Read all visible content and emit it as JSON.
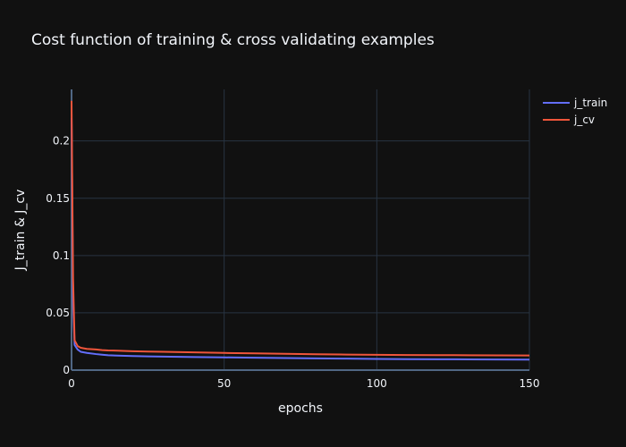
{
  "chart_data": {
    "type": "line",
    "title": "Cost function of training & cross validating examples",
    "xlabel": "epochs",
    "ylabel": "J_train & J_cv",
    "xlim": [
      0,
      150
    ],
    "ylim": [
      0,
      0.245
    ],
    "x_ticks": [
      0,
      50,
      100,
      150
    ],
    "y_ticks": [
      0,
      0.05,
      0.1,
      0.15,
      0.2
    ],
    "x_tick_labels": [
      "0",
      "50",
      "100",
      "150"
    ],
    "y_tick_labels": [
      "0",
      "0.05",
      "0.1",
      "0.15",
      "0.2"
    ],
    "grid": true,
    "legend_position": "top-right",
    "series": [
      {
        "name": "j_train",
        "color": "#636efa",
        "x": [
          0,
          0.5,
          1,
          2,
          3,
          5,
          8,
          10,
          12,
          15,
          20,
          25,
          30,
          40,
          50,
          60,
          70,
          80,
          90,
          100,
          110,
          120,
          130,
          140,
          150
        ],
        "y": [
          0.22,
          0.06,
          0.022,
          0.018,
          0.016,
          0.015,
          0.014,
          0.0135,
          0.013,
          0.0127,
          0.0123,
          0.012,
          0.0118,
          0.0114,
          0.0111,
          0.0108,
          0.0105,
          0.0102,
          0.01,
          0.0098,
          0.0096,
          0.0095,
          0.0094,
          0.0093,
          0.0092
        ]
      },
      {
        "name": "j_cv",
        "color": "#ef553b",
        "x": [
          0,
          0.5,
          1,
          2,
          3,
          5,
          8,
          10,
          12,
          15,
          20,
          25,
          30,
          40,
          50,
          60,
          70,
          80,
          90,
          100,
          110,
          120,
          130,
          140,
          150
        ],
        "y": [
          0.235,
          0.08,
          0.026,
          0.021,
          0.0195,
          0.0185,
          0.018,
          0.0175,
          0.0172,
          0.017,
          0.0165,
          0.0162,
          0.016,
          0.0155,
          0.015,
          0.0146,
          0.0142,
          0.0139,
          0.0136,
          0.0134,
          0.0132,
          0.0131,
          0.013,
          0.0129,
          0.0128
        ]
      }
    ]
  }
}
